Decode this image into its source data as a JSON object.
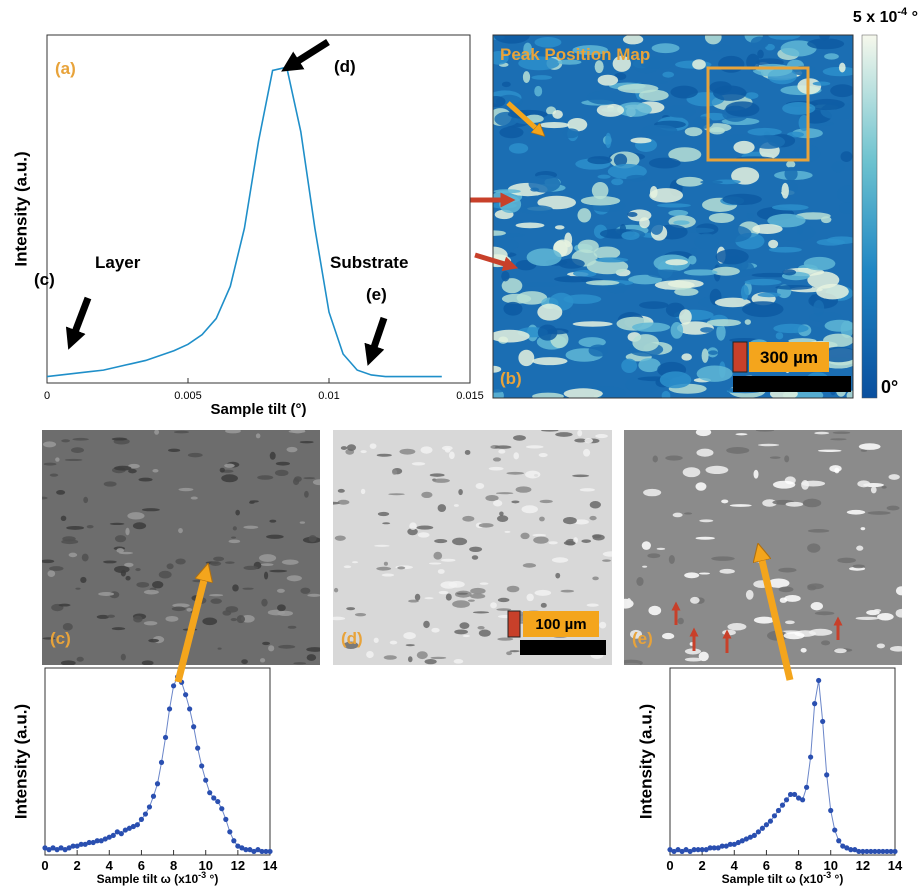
{
  "chart_data": [
    {
      "type": "line",
      "color": "#1f8fc9",
      "markers": false,
      "xlabel": [
        "Sample tilt (°)"
      ],
      "ylabel": "Intensity (a.u.)",
      "annotations": [
        "(a)",
        "(d)",
        "Layer",
        "(c)",
        "Substrate",
        "(e)"
      ],
      "x": [
        0,
        0.0005,
        0.001,
        0.0015,
        0.002,
        0.0025,
        0.003,
        0.0035,
        0.004,
        0.0045,
        0.005,
        0.0055,
        0.006,
        0.0065,
        0.007,
        0.0075,
        0.008,
        0.0085,
        0.009,
        0.0095,
        0.01,
        0.0105,
        0.011,
        0.0115,
        0.012,
        0.0125,
        0.013,
        0.0135,
        0.014
      ],
      "values": [
        0.02,
        0.025,
        0.03,
        0.035,
        0.04,
        0.05,
        0.06,
        0.07,
        0.085,
        0.1,
        0.12,
        0.15,
        0.2,
        0.3,
        0.48,
        0.75,
        0.97,
        0.98,
        0.78,
        0.48,
        0.22,
        0.09,
        0.04,
        0.025,
        0.02,
        0.02,
        0.02,
        0.02,
        0.02
      ],
      "xlim": [
        0,
        0.015
      ],
      "xticks": [
        0,
        0.005,
        0.01,
        0.015
      ],
      "ylim": [
        0,
        1.08
      ]
    },
    {
      "type": "line",
      "color": "#2a4fb0",
      "markers": true,
      "xlabel": [
        "Sample tilt ω (x10",
        "-3",
        " °)"
      ],
      "ylabel": "Intensity (a.u.)",
      "x": [
        0,
        0.25,
        0.5,
        0.75,
        1,
        1.25,
        1.5,
        1.75,
        2,
        2.25,
        2.5,
        2.75,
        3,
        3.25,
        3.5,
        3.75,
        4,
        4.25,
        4.5,
        4.75,
        5,
        5.25,
        5.5,
        5.75,
        6,
        6.25,
        6.5,
        6.75,
        7,
        7.25,
        7.5,
        7.75,
        8,
        8.25,
        8.5,
        8.75,
        9,
        9.25,
        9.5,
        9.75,
        10,
        10.25,
        10.5,
        10.75,
        11,
        11.25,
        11.5,
        11.75,
        12,
        12.25,
        12.5,
        12.75,
        13,
        13.25,
        13.5,
        13.75,
        14
      ],
      "values": [
        0.04,
        0.03,
        0.04,
        0.03,
        0.04,
        0.03,
        0.04,
        0.05,
        0.05,
        0.06,
        0.06,
        0.07,
        0.07,
        0.08,
        0.08,
        0.09,
        0.1,
        0.11,
        0.13,
        0.12,
        0.14,
        0.15,
        0.16,
        0.17,
        0.2,
        0.23,
        0.27,
        0.33,
        0.4,
        0.52,
        0.66,
        0.82,
        0.95,
        1.0,
        0.97,
        0.9,
        0.82,
        0.72,
        0.6,
        0.5,
        0.42,
        0.35,
        0.32,
        0.3,
        0.26,
        0.2,
        0.13,
        0.08,
        0.05,
        0.04,
        0.03,
        0.03,
        0.02,
        0.03,
        0.02,
        0.02,
        0.02
      ],
      "xlim": [
        0,
        14
      ],
      "xticks": [
        0,
        2,
        4,
        6,
        8,
        10,
        12,
        14
      ],
      "ylim": [
        0,
        1.05
      ]
    },
    {
      "type": "line",
      "color": "#2a4fb0",
      "markers": true,
      "xlabel": [
        "Sample tilt ω (x10",
        "-3",
        " °)"
      ],
      "ylabel": "Intensity (a.u.)",
      "x": [
        0,
        0.25,
        0.5,
        0.75,
        1,
        1.25,
        1.5,
        1.75,
        2,
        2.25,
        2.5,
        2.75,
        3,
        3.25,
        3.5,
        3.75,
        4,
        4.25,
        4.5,
        4.75,
        5,
        5.25,
        5.5,
        5.75,
        6,
        6.25,
        6.5,
        6.75,
        7,
        7.25,
        7.5,
        7.75,
        8,
        8.25,
        8.5,
        8.75,
        9,
        9.25,
        9.5,
        9.75,
        10,
        10.25,
        10.5,
        10.75,
        11,
        11.25,
        11.5,
        11.75,
        12,
        12.25,
        12.5,
        12.75,
        13,
        13.25,
        13.5,
        13.75,
        14
      ],
      "values": [
        0.03,
        0.02,
        0.03,
        0.02,
        0.03,
        0.02,
        0.03,
        0.03,
        0.03,
        0.03,
        0.04,
        0.04,
        0.04,
        0.05,
        0.05,
        0.06,
        0.06,
        0.07,
        0.08,
        0.09,
        0.1,
        0.11,
        0.13,
        0.15,
        0.17,
        0.19,
        0.22,
        0.25,
        0.28,
        0.31,
        0.34,
        0.34,
        0.32,
        0.31,
        0.38,
        0.55,
        0.85,
        0.98,
        0.75,
        0.45,
        0.25,
        0.14,
        0.08,
        0.05,
        0.04,
        0.03,
        0.03,
        0.02,
        0.02,
        0.02,
        0.02,
        0.02,
        0.02,
        0.02,
        0.02,
        0.02,
        0.02
      ],
      "xlim": [
        0,
        14
      ],
      "xticks": [
        0,
        2,
        4,
        6,
        8,
        10,
        12,
        14
      ],
      "ylim": [
        0,
        1.05
      ]
    }
  ],
  "panels": {
    "map": {
      "label": "(b)",
      "title": "Peak Position Map",
      "scale_bar": "300 µm",
      "colorbar_max": [
        "5 x 10",
        "-4",
        " °"
      ],
      "colorbar_min": "0°"
    },
    "image_c": {
      "label": "(c)"
    },
    "image_d": {
      "label": "(d)",
      "scale_bar": "100 µm"
    },
    "image_e": {
      "label": "(e)"
    }
  }
}
